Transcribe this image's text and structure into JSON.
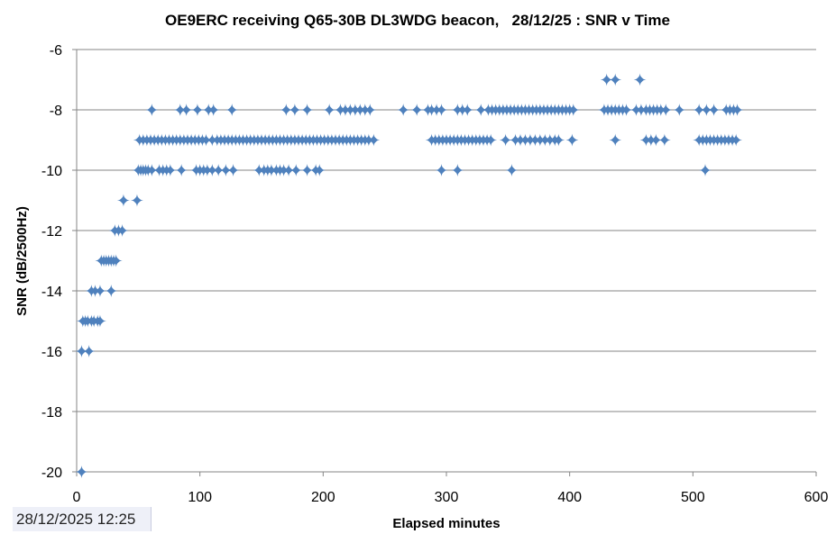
{
  "chart_data": {
    "type": "scatter",
    "title": "OE9ERC receiving Q65-30B DL3WDG beacon,   28/12/25 : SNR v Time",
    "xlabel": "Elapsed minutes",
    "ylabel": "SNR (dB/2500Hz)",
    "xlim": [
      0,
      600
    ],
    "ylim": [
      -20,
      -6
    ],
    "xticks": [
      0,
      100,
      200,
      300,
      400,
      500,
      600
    ],
    "yticks": [
      -6,
      -8,
      -10,
      -12,
      -14,
      -16,
      -18,
      -20
    ],
    "grid": "horizontal",
    "legend": "none",
    "marker_color": "#4f81bd",
    "series": [
      {
        "name": "SNR",
        "rows": [
          {
            "y": -20,
            "x": [
              4
            ]
          },
          {
            "y": -16,
            "x": [
              4,
              10
            ]
          },
          {
            "y": -15,
            "x": [
              5,
              7,
              9,
              12,
              14,
              17,
              19
            ]
          },
          {
            "y": -14,
            "x": [
              12,
              15,
              19,
              28
            ]
          },
          {
            "y": -13,
            "x": [
              20,
              22,
              24,
              26,
              28,
              30,
              32
            ]
          },
          {
            "y": -12,
            "x": [
              31,
              34,
              37
            ]
          },
          {
            "y": -11,
            "x": [
              38,
              49
            ]
          },
          {
            "y": -10,
            "x": [
              50,
              52,
              54,
              56,
              58,
              61,
              67,
              70,
              73,
              76,
              85,
              97,
              100,
              103,
              106,
              110,
              115,
              121,
              127,
              148,
              152,
              155,
              158,
              162,
              165,
              168,
              172,
              178,
              187,
              194,
              197,
              296,
              309,
              353,
              510
            ]
          },
          {
            "y": -9,
            "x": [
              51,
              54,
              57,
              60,
              63,
              66,
              69,
              72,
              75,
              78,
              81,
              84,
              87,
              90,
              93,
              96,
              99,
              102,
              105,
              110,
              114,
              117,
              120,
              123,
              126,
              129,
              132,
              135,
              138,
              141,
              144,
              147,
              150,
              153,
              156,
              159,
              162,
              165,
              168,
              171,
              174,
              177,
              180,
              183,
              186,
              189,
              192,
              195,
              198,
              201,
              204,
              207,
              210,
              213,
              216,
              219,
              222,
              225,
              228,
              231,
              234,
              237,
              241,
              288,
              291,
              294,
              297,
              300,
              303,
              306,
              309,
              312,
              315,
              318,
              321,
              324,
              327,
              330,
              333,
              336,
              348,
              356,
              360,
              364,
              368,
              372,
              376,
              380,
              384,
              388,
              391,
              402,
              437,
              462,
              466,
              470,
              477,
              505,
              508,
              511,
              514,
              517,
              520,
              523,
              526,
              529,
              532,
              535
            ]
          },
          {
            "y": -8,
            "x": [
              61,
              84,
              89,
              98,
              107,
              111,
              126,
              170,
              177,
              187,
              205,
              214,
              218,
              222,
              226,
              230,
              234,
              238,
              265,
              276,
              285,
              288,
              292,
              296,
              309,
              313,
              317,
              328,
              334,
              337,
              340,
              343,
              346,
              349,
              352,
              355,
              358,
              361,
              364,
              367,
              370,
              373,
              376,
              379,
              382,
              385,
              388,
              391,
              394,
              397,
              400,
              403,
              428,
              431,
              434,
              437,
              440,
              443,
              446,
              454,
              458,
              462,
              465,
              468,
              471,
              474,
              478,
              489,
              505,
              511,
              517,
              527,
              530,
              533,
              536
            ]
          },
          {
            "y": -7,
            "x": [
              430,
              437,
              457
            ]
          }
        ]
      }
    ]
  },
  "overlay": {
    "timestamp": "28/12/2025 12:25"
  }
}
